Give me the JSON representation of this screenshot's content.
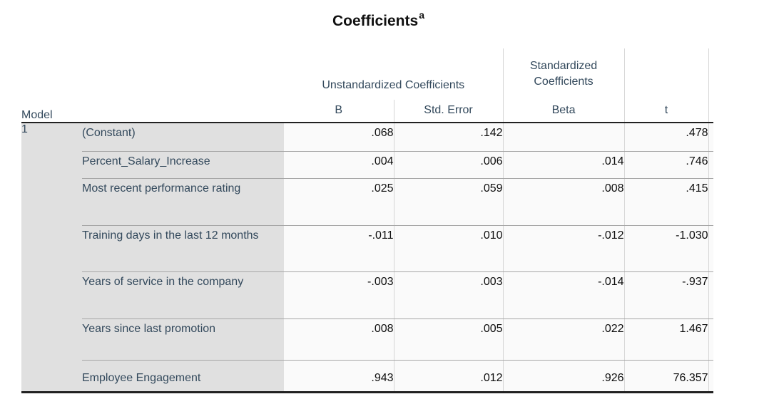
{
  "title": {
    "text": "Coefficients",
    "superscript": "a"
  },
  "table": {
    "model_header": "Model",
    "model_number": "1",
    "groups": {
      "unstandardized": "Unstandardized Coefficients",
      "standardized": "Standardized Coefficients"
    },
    "columns": {
      "b": "B",
      "std_error": "Std. Error",
      "beta": "Beta",
      "t": "t"
    },
    "rows": [
      {
        "label": "(Constant)",
        "b": ".068",
        "std_error": ".142",
        "beta": "",
        "t": ".478"
      },
      {
        "label": "Percent_Salary_Increase",
        "b": ".004",
        "std_error": ".006",
        "beta": ".014",
        "t": ".746"
      },
      {
        "label": "Most recent performance rating",
        "b": ".025",
        "std_error": ".059",
        "beta": ".008",
        "t": ".415"
      },
      {
        "label": "Training days in the last 12 months",
        "b": "-.011",
        "std_error": ".010",
        "beta": "-.012",
        "t": "-1.030"
      },
      {
        "label": "Years of service in the company",
        "b": "-.003",
        "std_error": ".003",
        "beta": "-.014",
        "t": "-.937"
      },
      {
        "label": "Years since last promotion",
        "b": ".008",
        "std_error": ".005",
        "beta": ".022",
        "t": "1.467"
      },
      {
        "label": "Employee Engagement",
        "b": ".943",
        "std_error": ".012",
        "beta": ".926",
        "t": "76.357"
      }
    ],
    "colors": {
      "header_text": "#33495c",
      "label_background": "#e0e0e0",
      "row_separator": "#a6a6a6",
      "column_separator": "#d6d6d6",
      "heavy_border": "#212121",
      "data_text": "#0d0d0d",
      "cell_background": "#fafafa"
    }
  }
}
